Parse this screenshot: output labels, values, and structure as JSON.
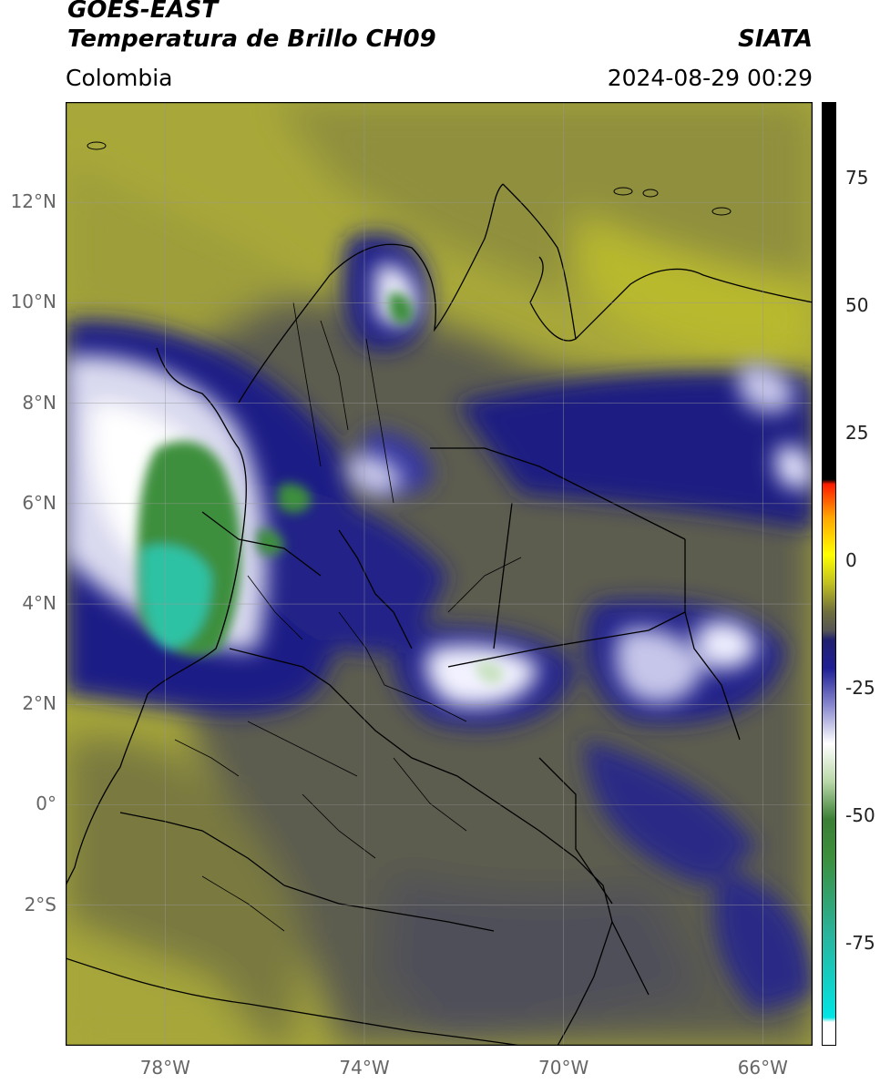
{
  "header": {
    "satellite": "GOES-EAST",
    "product": "Temperatura de Brillo CH09",
    "organization": "SIATA",
    "region": "Colombia",
    "timestamp": "2024-08-29 00:29"
  },
  "map": {
    "lon_range": [
      -80,
      -65
    ],
    "lat_range": [
      -4.8,
      14
    ],
    "lat_ticks": [
      {
        "value": 12,
        "label": "12°N"
      },
      {
        "value": 10,
        "label": "10°N"
      },
      {
        "value": 8,
        "label": "8°N"
      },
      {
        "value": 6,
        "label": "6°N"
      },
      {
        "value": 4,
        "label": "4°N"
      },
      {
        "value": 2,
        "label": "2°N"
      },
      {
        "value": 0,
        "label": "0°"
      },
      {
        "value": -2,
        "label": "2°S"
      }
    ],
    "lon_ticks": [
      {
        "value": -78,
        "label": "78°W"
      },
      {
        "value": -74,
        "label": "74°W"
      },
      {
        "value": -70,
        "label": "70°W"
      },
      {
        "value": -66,
        "label": "66°W"
      }
    ],
    "gridlines": true,
    "colors": {
      "warm": "#b5b532",
      "mid": "#5a5a4a",
      "cold_blue": "#18187e",
      "very_cold_white": "#ffffff",
      "coldest_green": "#3a8f3a",
      "coldest_cyan": "#2ec7a8"
    }
  },
  "colorbar": {
    "range": [
      -95,
      90
    ],
    "ticks": [
      {
        "value": 75,
        "label": "75"
      },
      {
        "value": 50,
        "label": "50"
      },
      {
        "value": 25,
        "label": "25"
      },
      {
        "value": 0,
        "label": "0"
      },
      {
        "value": -25,
        "label": "-25"
      },
      {
        "value": -50,
        "label": "-50"
      },
      {
        "value": -75,
        "label": "-75"
      }
    ]
  }
}
